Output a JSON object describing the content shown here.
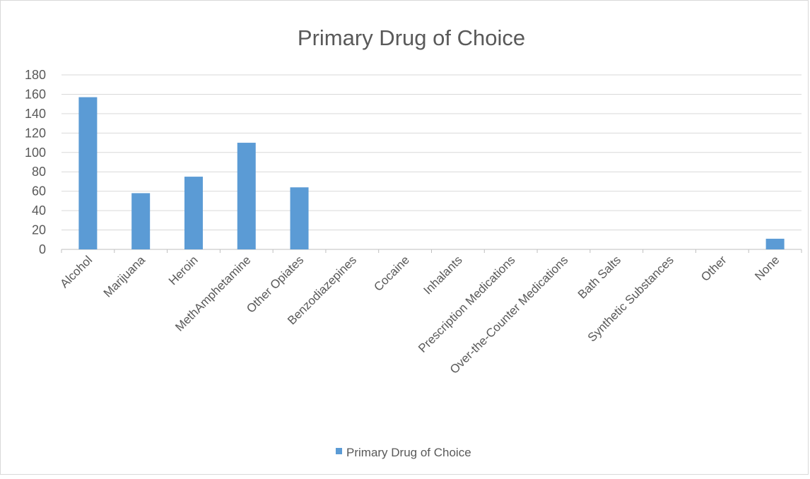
{
  "chart_data": {
    "type": "bar",
    "title": "Primary Drug of Choice",
    "xlabel": "",
    "ylabel": "",
    "categories": [
      "Alcohol",
      "Marijuana",
      "Heroin",
      "MethAmphetamine",
      "Other Opiates",
      "Benzodiazepines",
      "Cocaine",
      "Inhalants",
      "Prescription Medications",
      "Over-the-Counter Medications",
      "Bath Salts",
      "Synthetic Substances",
      "Other",
      "None"
    ],
    "series": [
      {
        "name": "Primary Drug of Choice",
        "values": [
          157,
          58,
          75,
          110,
          64,
          0,
          0,
          0,
          0,
          0,
          0,
          0,
          0,
          11
        ]
      }
    ],
    "ylim": [
      0,
      180
    ],
    "yticks": [
      0,
      20,
      40,
      60,
      80,
      100,
      120,
      140,
      160,
      180
    ],
    "grid": true,
    "legend_position": "bottom",
    "colors": {
      "bar": "#5b9bd5",
      "grid": "#d9d9d9",
      "axis": "#bfbfbf",
      "text": "#595959"
    }
  }
}
